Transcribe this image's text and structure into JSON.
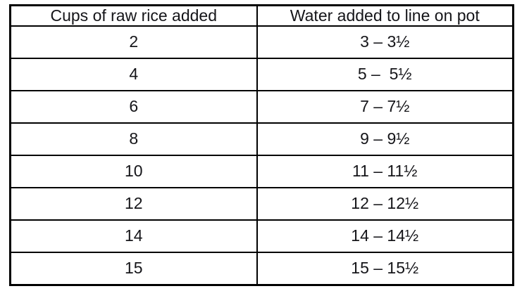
{
  "table": {
    "headers": [
      "Cups of raw rice added",
      "Water added to line on pot"
    ],
    "rows": [
      [
        "2",
        "3 – 3½"
      ],
      [
        "4",
        "5 –  5½"
      ],
      [
        "6",
        "7 – 7½"
      ],
      [
        "8",
        "9 – 9½"
      ],
      [
        "10",
        "11 – 11½"
      ],
      [
        "12",
        "12 – 12½"
      ],
      [
        "14",
        "14 – 14½"
      ],
      [
        "15",
        "15 – 15½"
      ]
    ]
  },
  "chart_data": {
    "type": "table",
    "title": "",
    "columns": [
      "Cups of raw rice added",
      "Water added to line on pot"
    ],
    "rows": [
      {
        "cups_raw_rice": 2,
        "water_line_range": "3 – 3½"
      },
      {
        "cups_raw_rice": 4,
        "water_line_range": "5 – 5½"
      },
      {
        "cups_raw_rice": 6,
        "water_line_range": "7 – 7½"
      },
      {
        "cups_raw_rice": 8,
        "water_line_range": "9 – 9½"
      },
      {
        "cups_raw_rice": 10,
        "water_line_range": "11 – 11½"
      },
      {
        "cups_raw_rice": 12,
        "water_line_range": "12 – 12½"
      },
      {
        "cups_raw_rice": 14,
        "water_line_range": "14 – 14½"
      },
      {
        "cups_raw_rice": 15,
        "water_line_range": "15 – 15½"
      }
    ]
  }
}
